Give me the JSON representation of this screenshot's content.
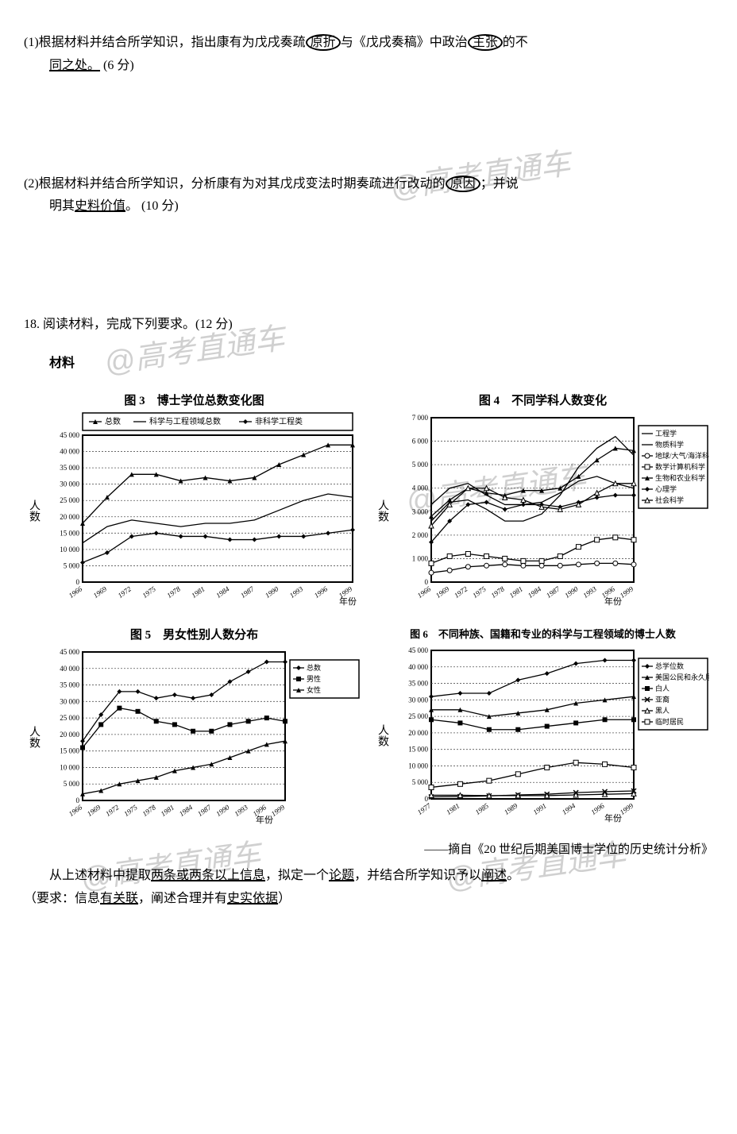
{
  "watermarks": [
    "@高考直通车",
    "@高考直通车",
    "@高考直通车",
    "@高考直通车",
    "@高考直通车"
  ],
  "q1": {
    "text_a": "(1)根据材料并结合所学知识，指出康有为戊戌奏疏",
    "circled1": "原折",
    "text_b": "与《戊戌奏稿》中政治",
    "circled2": "主张",
    "text_c": "的不",
    "text_d": "同之处。",
    "points": "(6 分)"
  },
  "q2": {
    "text_a": "(2)根据材料并结合所学知识，分析康有为对其戊戌变法时期奏疏进行改动的",
    "circled": "原因",
    "text_b": "；并说",
    "text_c": "明其",
    "underlined": "史料价值",
    "text_d": "。",
    "points": "(10 分)"
  },
  "q18": {
    "header": "18. 阅读材料，完成下列要求。(12 分)",
    "material_label": "材料",
    "source": "——摘自《20 世纪后期美国博士学位的历史统计分析》",
    "task_a": "从上述材料中提取",
    "task_u1": "两条或两条以上信息",
    "task_b": "，拟定一个",
    "task_u2": "论题",
    "task_c": "，并结合所学知识予以",
    "task_u3": "阐述",
    "task_d": "。",
    "req_a": "（要求：信息",
    "req_u1": "有关联",
    "req_b": "，阐述合理并有",
    "req_u2": "史实依据",
    "req_c": "）"
  },
  "chart3": {
    "title": "图 3　博士学位总数变化图",
    "ylabel": "人数",
    "xlabel": "年份",
    "ylim": [
      0,
      45000
    ],
    "ytick_step": 5000,
    "x_categories": [
      "1966",
      "1969",
      "1972",
      "1975",
      "1978",
      "1981",
      "1984",
      "1987",
      "1990",
      "1993",
      "1996",
      "1999"
    ],
    "legend": [
      "总数",
      "科学与工程领域总数",
      "非科学工程类"
    ],
    "markers": [
      "triangle",
      "line",
      "diamond"
    ],
    "series": {
      "total": [
        18000,
        26000,
        33000,
        33000,
        31000,
        32000,
        31000,
        32000,
        36000,
        39000,
        42000,
        42000
      ],
      "sci_eng": [
        12000,
        17000,
        19000,
        18000,
        17000,
        18000,
        18000,
        19000,
        22000,
        25000,
        27000,
        26000
      ],
      "non_sci": [
        6000,
        9000,
        14000,
        15000,
        14000,
        14000,
        13000,
        13000,
        14000,
        14000,
        15000,
        16000
      ]
    },
    "colors": {
      "line": "#000000",
      "grid": "#555555",
      "bg": "#ffffff"
    }
  },
  "chart4": {
    "title": "图 4　不同学科人数变化",
    "ylabel": "人数",
    "xlabel": "年份",
    "ylim": [
      0,
      7000
    ],
    "ytick_step": 1000,
    "x_categories": [
      "1966",
      "1969",
      "1972",
      "1975",
      "1978",
      "1981",
      "1984",
      "1987",
      "1990",
      "1993",
      "1996",
      "1999"
    ],
    "legend": [
      "工程学",
      "物质科学",
      "地球/大气/海洋科学",
      "数学计算机科学",
      "生物和农业科学",
      "心理学",
      "社会科学"
    ],
    "markers": [
      "line",
      "line",
      "circle-open",
      "square-open",
      "triangle",
      "diamond",
      "triangle-open"
    ],
    "series": {
      "eng": [
        2600,
        3400,
        3500,
        3100,
        2600,
        2600,
        2900,
        3700,
        4900,
        5700,
        6200,
        5400
      ],
      "phys": [
        3300,
        4000,
        4200,
        3700,
        3300,
        3300,
        3400,
        3800,
        4300,
        4500,
        4200,
        4000
      ],
      "earth": [
        400,
        500,
        650,
        700,
        750,
        700,
        700,
        700,
        750,
        800,
        800,
        750
      ],
      "math": [
        800,
        1100,
        1200,
        1100,
        1000,
        900,
        900,
        1100,
        1500,
        1800,
        1900,
        1800
      ],
      "bio": [
        2800,
        3500,
        4000,
        3800,
        3700,
        3900,
        3900,
        4000,
        4500,
        5200,
        5700,
        5600
      ],
      "psych": [
        1700,
        2600,
        3300,
        3400,
        3100,
        3300,
        3300,
        3200,
        3400,
        3600,
        3700,
        3700
      ],
      "social": [
        2400,
        3300,
        4000,
        4000,
        3600,
        3500,
        3200,
        3100,
        3300,
        3800,
        4200,
        4200
      ]
    },
    "colors": {
      "line": "#000000",
      "grid": "#555555",
      "bg": "#ffffff"
    }
  },
  "chart5": {
    "title": "图 5　男女性别人数分布",
    "ylabel": "人数",
    "xlabel": "年份",
    "ylim": [
      0,
      45000
    ],
    "ytick_step": 5000,
    "x_categories": [
      "1966",
      "1969",
      "1972",
      "1975",
      "1978",
      "1981",
      "1984",
      "1987",
      "1990",
      "1993",
      "1996",
      "1999"
    ],
    "legend": [
      "总数",
      "男性",
      "女性"
    ],
    "markers": [
      "diamond",
      "square",
      "triangle"
    ],
    "series": {
      "total": [
        18000,
        26000,
        33000,
        33000,
        31000,
        32000,
        31000,
        32000,
        36000,
        39000,
        42000,
        42000
      ],
      "male": [
        16000,
        23000,
        28000,
        27000,
        24000,
        23000,
        21000,
        21000,
        23000,
        24000,
        25000,
        24000
      ],
      "female": [
        2000,
        3000,
        5000,
        6000,
        7000,
        9000,
        10000,
        11000,
        13000,
        15000,
        17000,
        18000
      ]
    },
    "colors": {
      "line": "#000000",
      "grid": "#555555",
      "bg": "#ffffff"
    }
  },
  "chart6": {
    "title": "图 6　不同种族、国籍和专业的科学与工程领域的博士人数",
    "ylabel": "人数",
    "xlabel": "年份",
    "ylim": [
      0,
      45000
    ],
    "ytick_step": 5000,
    "x_categories": [
      "1977",
      "1981",
      "1985",
      "1989",
      "1991",
      "1994",
      "1996",
      "1999"
    ],
    "legend": [
      "总学位数",
      "美国公民和永久居民",
      "白人",
      "亚裔",
      "黑人",
      "临时居民"
    ],
    "markers": [
      "diamond",
      "triangle",
      "square",
      "x",
      "triangle-open",
      "square-open"
    ],
    "series": {
      "total": [
        31000,
        32000,
        32000,
        36000,
        38000,
        41000,
        42000,
        42000
      ],
      "us": [
        27000,
        27000,
        25000,
        26000,
        27000,
        29000,
        30000,
        31000
      ],
      "white": [
        24000,
        23000,
        21000,
        21000,
        22000,
        23000,
        24000,
        24000
      ],
      "asian": [
        600,
        700,
        900,
        1200,
        1400,
        1900,
        2200,
        2400
      ],
      "black": [
        1100,
        1100,
        1000,
        1000,
        1000,
        1200,
        1400,
        1600
      ],
      "temp": [
        3500,
        4500,
        5500,
        7500,
        9500,
        11000,
        10500,
        9500
      ]
    },
    "colors": {
      "line": "#000000",
      "grid": "#555555",
      "bg": "#ffffff"
    }
  }
}
